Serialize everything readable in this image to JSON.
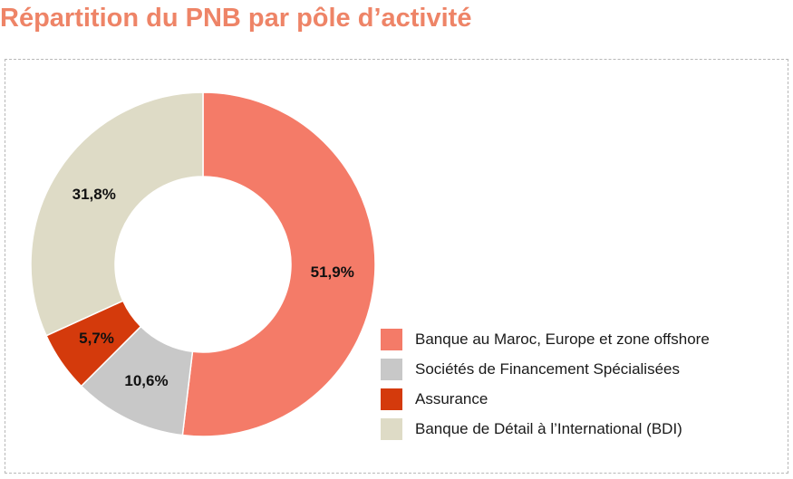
{
  "title": "Répartition du PNB par pôle d’activité",
  "colors": {
    "title": "#EE8467",
    "frame_border": "#b8b8b8"
  },
  "chart_data": {
    "type": "pie",
    "donut": true,
    "legend_position": "bottom-right",
    "slices": [
      {
        "label": "Banque au Maroc, Europe et zone offshore",
        "value": 51.9,
        "value_label": "51,9%",
        "color": "#F47B68"
      },
      {
        "label": "Sociétés de Financement Spécialisées",
        "value": 10.6,
        "value_label": "10,6%",
        "color": "#C8C8C8"
      },
      {
        "label": "Assurance",
        "value": 5.7,
        "value_label": "5,7%",
        "color": "#D43A0C"
      },
      {
        "label": "Banque de Détail à l’International (BDI)",
        "value": 31.8,
        "value_label": "31,8%",
        "color": "#DEDBC6"
      }
    ]
  }
}
